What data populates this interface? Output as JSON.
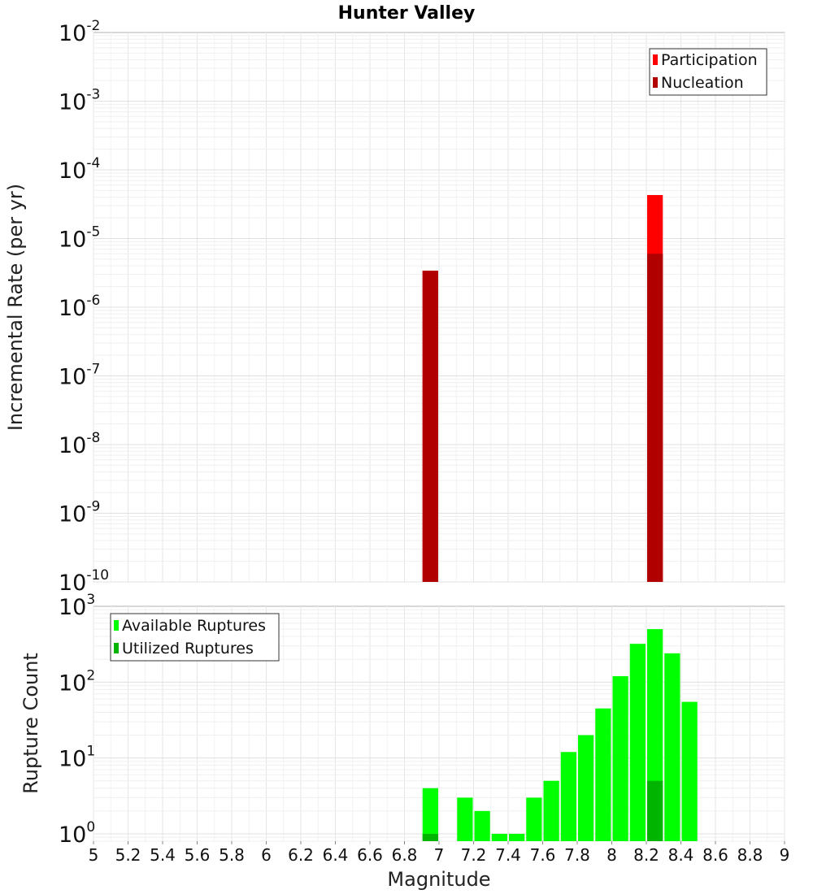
{
  "title": "Hunter Valley",
  "chart_data": [
    {
      "type": "bar",
      "name": "rate-panel",
      "xlabel": "",
      "ylabel": "Incremental Rate (per yr)",
      "y_scale": "log",
      "ylim": [
        1e-10,
        0.01
      ],
      "xlim": [
        5,
        9
      ],
      "y_tick_exponents": [
        "-10",
        "-9",
        "-8",
        "-7",
        "-6",
        "-5",
        "-4",
        "-3",
        "-2"
      ],
      "y_tick_base": "10",
      "bin_width": 0.1,
      "grid": true,
      "legend_position": "top-right",
      "series": [
        {
          "name": "Participation",
          "color": "#ff0000",
          "x": [
            6.95,
            8.25
          ],
          "values": [
            3.4e-06,
            4.3e-05
          ]
        },
        {
          "name": "Nucleation",
          "color": "#b00000",
          "x": [
            6.95,
            8.25
          ],
          "values": [
            3.4e-06,
            6e-06
          ]
        }
      ]
    },
    {
      "type": "bar",
      "name": "count-panel",
      "xlabel": "Magnitude",
      "ylabel": "Rupture Count",
      "y_scale": "log",
      "ylim": [
        0.8,
        1000
      ],
      "xlim": [
        5,
        9
      ],
      "y_tick_exponents": [
        "0",
        "1",
        "2",
        "3"
      ],
      "y_tick_base": "10",
      "x_ticks": [
        "5",
        "5.2",
        "5.4",
        "5.6",
        "5.8",
        "6",
        "6.2",
        "6.4",
        "6.6",
        "6.8",
        "7",
        "7.2",
        "7.4",
        "7.6",
        "7.8",
        "8",
        "8.2",
        "8.4",
        "8.6",
        "8.8",
        "9"
      ],
      "bin_width": 0.1,
      "grid": true,
      "legend_position": "top-left",
      "series": [
        {
          "name": "Available Ruptures",
          "color": "#00ff00",
          "x": [
            6.95,
            7.15,
            7.25,
            7.35,
            7.45,
            7.55,
            7.65,
            7.75,
            7.85,
            7.95,
            8.05,
            8.15,
            8.25,
            8.35,
            8.45
          ],
          "values": [
            4,
            3,
            2,
            1,
            1,
            3,
            5,
            12,
            20,
            45,
            120,
            320,
            500,
            240,
            55
          ]
        },
        {
          "name": "Utilized Ruptures",
          "color": "#00b400",
          "x": [
            6.95,
            8.25
          ],
          "values": [
            1,
            5
          ]
        }
      ]
    }
  ]
}
